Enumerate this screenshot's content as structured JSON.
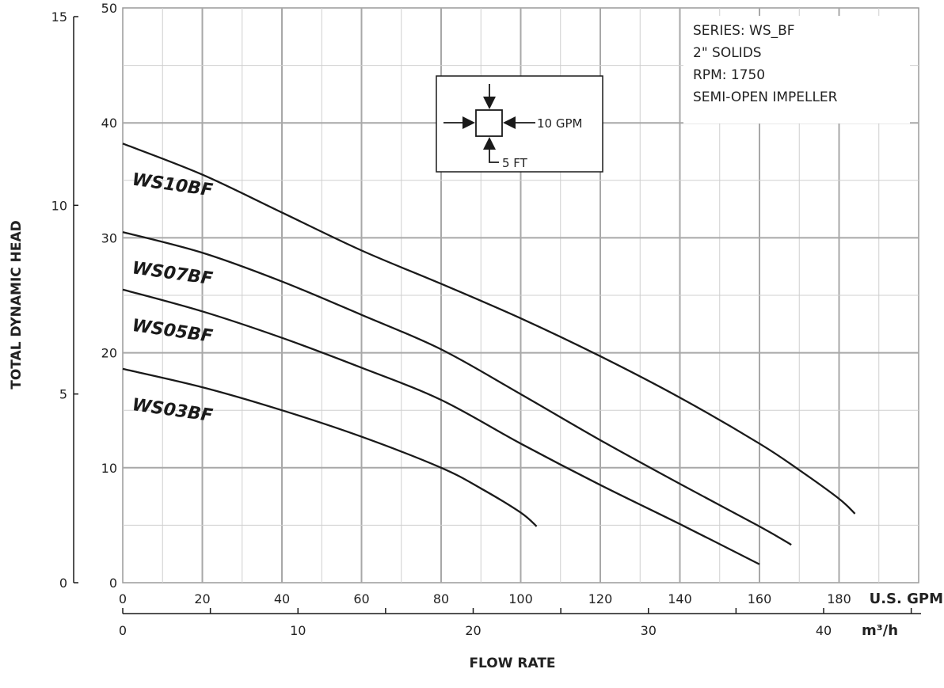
{
  "chart_data": {
    "type": "line",
    "xlabel": "FLOW RATE",
    "ylabel": "TOTAL DYNAMIC HEAD",
    "x_unit": "U.S. GPM",
    "x2_unit": "m³/h",
    "xlim": [
      0,
      200
    ],
    "ylim": [
      0,
      50
    ],
    "x_ticks": [
      0,
      20,
      40,
      60,
      80,
      100,
      120,
      140,
      160,
      180
    ],
    "y_ticks": [
      0,
      10,
      20,
      30,
      40,
      50
    ],
    "x2_ticks": [
      0,
      10,
      20,
      30,
      40
    ],
    "y2_ticks": [
      0,
      5,
      10,
      15
    ],
    "grid": true,
    "series": [
      {
        "name": "WS10BF",
        "x": [
          0,
          20,
          40,
          60,
          80,
          100,
          120,
          140,
          160,
          170,
          180,
          184
        ],
        "y": [
          38.2,
          35.5,
          32.2,
          28.9,
          26.0,
          23.0,
          19.7,
          16.1,
          12.1,
          9.8,
          7.3,
          6.0
        ]
      },
      {
        "name": "WS07BF",
        "x": [
          0,
          20,
          40,
          60,
          80,
          100,
          120,
          140,
          160,
          168
        ],
        "y": [
          30.5,
          28.7,
          26.2,
          23.3,
          20.3,
          16.4,
          12.4,
          8.6,
          4.9,
          3.3
        ]
      },
      {
        "name": "WS05BF",
        "x": [
          0,
          20,
          40,
          60,
          80,
          100,
          120,
          140,
          160
        ],
        "y": [
          25.5,
          23.6,
          21.3,
          18.7,
          15.9,
          12.1,
          8.5,
          5.1,
          1.6
        ]
      },
      {
        "name": "WS03BF",
        "x": [
          0,
          20,
          40,
          60,
          80,
          90,
          100,
          104
        ],
        "y": [
          18.6,
          17.0,
          15.0,
          12.7,
          10.0,
          8.2,
          6.1,
          4.9
        ]
      }
    ],
    "annotations": [
      "SERIES: WS_BF",
      "2\" SOLIDS",
      "RPM: 1750",
      "SEMI-OPEN IMPELLER"
    ],
    "scale_legend": {
      "x": "10 GPM",
      "y": "5 FT"
    }
  }
}
